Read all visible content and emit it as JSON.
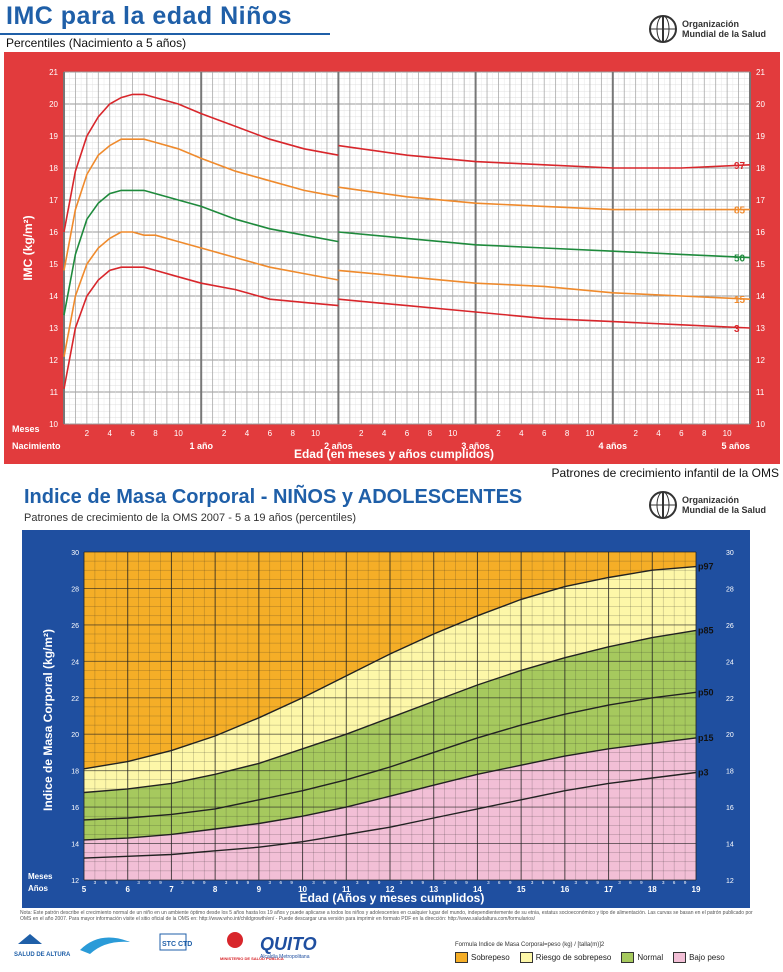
{
  "chart1": {
    "title": "IMC para la edad Niños",
    "subtitle": "Percentiles (Nacimiento a 5 años)",
    "who_line1": "Organización",
    "who_line2": "Mundial de la Salud",
    "footer": "Patrones de crecimiento infantil de la OMS",
    "ylabel": "IMC (kg/m²)",
    "xlabel": "Edad (en meses y años cumplidos)",
    "meses_label": "Meses",
    "colors": {
      "p97": "#d8262b",
      "p85": "#ef8a2c",
      "p50": "#1e8a3c",
      "p15": "#ef8a2c",
      "p3": "#d8262b",
      "frame": "#e23b3d"
    }
  },
  "chart2": {
    "title": "Indice de Masa Corporal - NIÑOS y  ADOLESCENTES",
    "subtitle": "Patrones de crecimiento de la OMS 2007 - 5 a 19 años (percentiles)",
    "who_line1": "Organización",
    "who_line2": "Mundial de la Salud",
    "ylabel": "Indice de Masa Corporal (kg/m²)",
    "xlabel": "Edad (Años y meses cumplidos)",
    "meses_label": "Meses",
    "anos_label": "Años",
    "note": "Nota: Este patrón describe el crecimiento normal de un niño en un ambiente óptimo desde los 5 años hasta los 19 años y puede aplicarse a todos los niños y adolescentes en cualquier lugar del mundo, independientemente de su etnia, estatus socioeconómico y tipo de alimentación. Las curvas se basan en el patrón publicado por OMS en el año 2007. Para mayor información visite el sitio oficial de la OMS en: http://www.who.int/childgrowth/en/ - Puede descargar una versión para imprimir en formato PDF en la dirección: http://www.saludaltura.com/formularios/",
    "formula": "Formula Indice de Masa Corporal=peso (kg) / [talla(m)]2",
    "legend": [
      {
        "label": "Sobrepeso",
        "color": "#f5ae27"
      },
      {
        "label": "Riesgo de sobrepeso",
        "color": "#fdf7a8"
      },
      {
        "label": "Normal",
        "color": "#a6c95e"
      },
      {
        "label": "Bajo peso",
        "color": "#f2bfd6"
      }
    ],
    "logos": [
      "SALUD DE ALTURA",
      "STC CTD",
      "MINISTERIO DE SALUD PÚBLICA",
      "QUITO",
      "Alcaldía Metropolitana"
    ]
  },
  "chart_data": [
    {
      "type": "line",
      "title": "IMC para la edad Niños",
      "subtitle": "Percentiles (Nacimiento a 5 años)",
      "xlabel": "Edad (en meses y años cumplidos)",
      "ylabel": "IMC (kg/m²)",
      "ylim": [
        10,
        21
      ],
      "xlim": [
        0,
        60
      ],
      "yticks": [
        10,
        11,
        12,
        13,
        14,
        15,
        16,
        17,
        18,
        19,
        20,
        21
      ],
      "x_month_ticks": [
        2,
        4,
        6,
        8,
        10
      ],
      "year_labels": [
        {
          "x": 0,
          "label": "Nacimiento"
        },
        {
          "x": 12,
          "label": "1 año"
        },
        {
          "x": 24,
          "label": "2 años"
        },
        {
          "x": 36,
          "label": "3 años"
        },
        {
          "x": 48,
          "label": "4 años"
        },
        {
          "x": 60,
          "label": "5 años"
        }
      ],
      "grid": true,
      "series": [
        {
          "name": "97",
          "color": "#d8262b",
          "x": [
            0,
            1,
            2,
            3,
            4,
            5,
            6,
            7,
            8,
            10,
            12,
            15,
            18,
            21,
            24,
            24,
            30,
            36,
            42,
            48,
            54,
            60
          ],
          "y": [
            16.0,
            17.9,
            19.0,
            19.6,
            20.0,
            20.2,
            20.3,
            20.3,
            20.2,
            20.0,
            19.7,
            19.3,
            18.9,
            18.6,
            18.4,
            18.7,
            18.4,
            18.2,
            18.1,
            18.0,
            18.0,
            18.1
          ]
        },
        {
          "name": "85",
          "color": "#ef8a2c",
          "x": [
            0,
            1,
            2,
            3,
            4,
            5,
            6,
            7,
            8,
            10,
            12,
            15,
            18,
            21,
            24,
            24,
            30,
            36,
            42,
            48,
            54,
            60
          ],
          "y": [
            14.8,
            16.7,
            17.8,
            18.4,
            18.7,
            18.9,
            18.9,
            18.9,
            18.8,
            18.6,
            18.3,
            17.9,
            17.6,
            17.3,
            17.1,
            17.4,
            17.1,
            16.9,
            16.8,
            16.7,
            16.7,
            16.7
          ]
        },
        {
          "name": "50",
          "color": "#1e8a3c",
          "x": [
            0,
            1,
            2,
            3,
            4,
            5,
            6,
            7,
            8,
            10,
            12,
            15,
            18,
            21,
            24,
            24,
            30,
            36,
            42,
            48,
            54,
            60
          ],
          "y": [
            13.4,
            15.3,
            16.4,
            16.9,
            17.2,
            17.3,
            17.3,
            17.3,
            17.2,
            17.0,
            16.8,
            16.4,
            16.1,
            15.9,
            15.7,
            16.0,
            15.8,
            15.6,
            15.5,
            15.4,
            15.3,
            15.2
          ]
        },
        {
          "name": "15",
          "color": "#ef8a2c",
          "x": [
            0,
            1,
            2,
            3,
            4,
            5,
            6,
            7,
            8,
            10,
            12,
            15,
            18,
            21,
            24,
            24,
            30,
            36,
            42,
            48,
            54,
            60
          ],
          "y": [
            12.1,
            14.0,
            15.0,
            15.5,
            15.8,
            16.0,
            16.0,
            15.9,
            15.9,
            15.7,
            15.5,
            15.2,
            14.9,
            14.7,
            14.5,
            14.8,
            14.6,
            14.4,
            14.3,
            14.1,
            14.0,
            13.9
          ]
        },
        {
          "name": "3",
          "color": "#d8262b",
          "x": [
            0,
            1,
            2,
            3,
            4,
            5,
            6,
            7,
            8,
            10,
            12,
            15,
            18,
            21,
            24,
            24,
            30,
            36,
            42,
            48,
            54,
            60
          ],
          "y": [
            11.1,
            13.0,
            14.0,
            14.5,
            14.8,
            14.9,
            14.9,
            14.9,
            14.8,
            14.6,
            14.4,
            14.2,
            13.9,
            13.8,
            13.7,
            13.9,
            13.7,
            13.5,
            13.3,
            13.2,
            13.1,
            13.0
          ]
        }
      ]
    },
    {
      "type": "area",
      "title": "Indice de Masa Corporal - NIÑOS y  ADOLESCENTES",
      "subtitle": "Patrones de crecimiento de la OMS 2007 - 5 a 19 años (percentiles)",
      "xlabel": "Edad (Años y meses cumplidos)",
      "ylabel": "Indice de Masa Corporal (kg/m²)",
      "xlim": [
        5,
        19
      ],
      "ylim": [
        12,
        30
      ],
      "yticks": [
        12,
        14,
        16,
        18,
        20,
        22,
        24,
        26,
        28,
        30
      ],
      "xticks": [
        5,
        6,
        7,
        8,
        9,
        10,
        11,
        12,
        13,
        14,
        15,
        16,
        17,
        18,
        19
      ],
      "grid": true,
      "bands": [
        {
          "label": "Sobrepeso",
          "color": "#f5ae27"
        },
        {
          "label": "Riesgo de sobrepeso",
          "color": "#fdf7a8"
        },
        {
          "label": "Normal",
          "color": "#a6c95e"
        },
        {
          "label": "Bajo peso",
          "color": "#f2bfd6"
        }
      ],
      "series": [
        {
          "name": "p97",
          "x": [
            5,
            6,
            7,
            8,
            9,
            10,
            11,
            12,
            13,
            14,
            15,
            16,
            17,
            18,
            19
          ],
          "y": [
            18.1,
            18.5,
            19.1,
            19.9,
            20.9,
            22.0,
            23.2,
            24.4,
            25.5,
            26.5,
            27.4,
            28.1,
            28.6,
            29.0,
            29.2
          ]
        },
        {
          "name": "p85",
          "x": [
            5,
            6,
            7,
            8,
            9,
            10,
            11,
            12,
            13,
            14,
            15,
            16,
            17,
            18,
            19
          ],
          "y": [
            16.8,
            17.0,
            17.3,
            17.8,
            18.4,
            19.2,
            20.0,
            20.9,
            21.8,
            22.7,
            23.5,
            24.2,
            24.8,
            25.3,
            25.7
          ]
        },
        {
          "name": "p50",
          "x": [
            5,
            6,
            7,
            8,
            9,
            10,
            11,
            12,
            13,
            14,
            15,
            16,
            17,
            18,
            19
          ],
          "y": [
            15.3,
            15.4,
            15.6,
            15.9,
            16.4,
            16.9,
            17.5,
            18.2,
            19.0,
            19.8,
            20.5,
            21.1,
            21.6,
            22.0,
            22.3
          ]
        },
        {
          "name": "p15",
          "x": [
            5,
            6,
            7,
            8,
            9,
            10,
            11,
            12,
            13,
            14,
            15,
            16,
            17,
            18,
            19
          ],
          "y": [
            14.2,
            14.3,
            14.5,
            14.8,
            15.1,
            15.5,
            16.0,
            16.6,
            17.2,
            17.8,
            18.3,
            18.8,
            19.2,
            19.5,
            19.8
          ]
        },
        {
          "name": "p3",
          "x": [
            5,
            6,
            7,
            8,
            9,
            10,
            11,
            12,
            13,
            14,
            15,
            16,
            17,
            18,
            19
          ],
          "y": [
            13.2,
            13.3,
            13.4,
            13.6,
            13.8,
            14.1,
            14.5,
            14.9,
            15.4,
            15.9,
            16.4,
            16.9,
            17.3,
            17.6,
            17.9
          ]
        }
      ]
    }
  ]
}
